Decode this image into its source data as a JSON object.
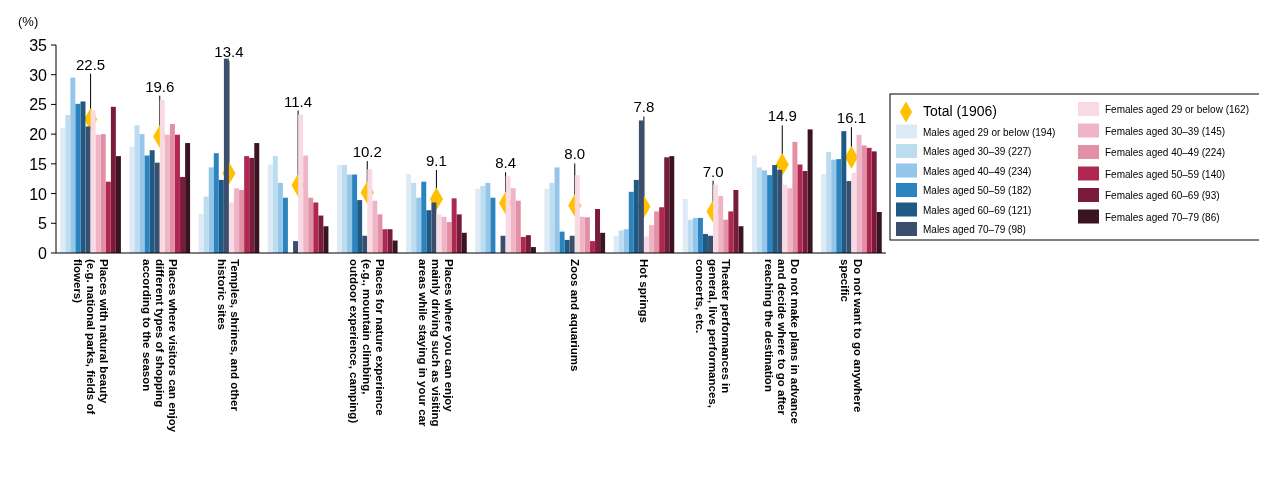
{
  "chart_data": {
    "type": "bar",
    "ylabel": "(%)",
    "ylim": [
      0,
      35
    ],
    "yticks": [
      0,
      5,
      10,
      15,
      20,
      25,
      30,
      35
    ],
    "legend": "right",
    "grid": false,
    "categories": [
      "Places with natural beauty (e.g. national parks, fields of flowers)",
      "Places where visitors can enjoy different types of shopping according to the season",
      "Temples, shrines, and other historic sites",
      null,
      "Places for nature experience (e.g., mountain climbing, outdoor experience, camping)",
      "Places where you can enjoy mainly driving such as visiting areas while staying in your car",
      null,
      "Zoos and aquariums",
      "Hot springs",
      "Theater performances in general, live performances, concerts, etc.",
      "Do not make plans in advance and decide where to go after reaching the destination",
      "Do not want to go anywhere specific"
    ],
    "series": [
      {
        "name": "Total (1906)",
        "type": "scatter",
        "marker": "diamond",
        "color": "#ffc000",
        "values": [
          22.5,
          19.6,
          13.4,
          11.4,
          10.2,
          9.1,
          8.4,
          8.0,
          7.8,
          7.0,
          14.9,
          16.1
        ],
        "value_labels": [
          "22.5",
          "19.6",
          "13.4",
          "11.4",
          "10.2",
          "9.1",
          "8.4",
          "8.0",
          "7.8",
          "7.0",
          "14.9",
          "16.1"
        ]
      },
      {
        "name": "Males aged 29 or below (194)",
        "color": "#deebf7",
        "values": [
          21.0,
          17.9,
          6.6,
          14.9,
          14.8,
          13.3,
          10.8,
          10.8,
          2.9,
          9.1,
          16.4,
          13.3
        ]
      },
      {
        "name": "Males aged 30–39 (227)",
        "color": "#bcdcf0",
        "values": [
          23.2,
          21.5,
          9.5,
          16.3,
          14.8,
          11.8,
          11.3,
          11.8,
          3.8,
          5.6,
          14.4,
          17.0
        ]
      },
      {
        "name": "Males aged 40–49 (234)",
        "color": "#93c6e8",
        "values": [
          29.5,
          20.0,
          14.4,
          11.8,
          13.2,
          9.3,
          11.8,
          14.4,
          4.0,
          5.9,
          13.9,
          15.7
        ]
      },
      {
        "name": "Males aged 50–59 (182)",
        "color": "#2b83bf",
        "values": [
          25.1,
          16.4,
          16.8,
          9.3,
          13.2,
          12.0,
          9.3,
          3.6,
          10.3,
          5.9,
          13.1,
          15.8
        ]
      },
      {
        "name": "Males aged 60–69 (121)",
        "color": "#1f5a85",
        "values": [
          25.5,
          17.3,
          12.3,
          0,
          8.9,
          7.2,
          0,
          2.2,
          12.3,
          3.2,
          14.8,
          20.5
        ]
      },
      {
        "name": "Males aged 70–79 (98)",
        "color": "#3a4e6e",
        "values": [
          21.3,
          15.2,
          32.7,
          2.0,
          2.9,
          8.5,
          2.9,
          2.9,
          22.3,
          2.9,
          14.0,
          12.1
        ]
      },
      {
        "name": "Females aged 29 or below (162)",
        "color": "#f9d9e3",
        "values": [
          24.0,
          25.8,
          8.5,
          23.3,
          14.1,
          6.5,
          12.9,
          13.1,
          2.8,
          11.5,
          11.5,
          13.5
        ]
      },
      {
        "name": "Females aged 30–39 (145)",
        "color": "#efb5c6",
        "values": [
          19.9,
          19.9,
          10.9,
          16.4,
          8.8,
          6.1,
          10.9,
          6.1,
          4.7,
          9.6,
          10.9,
          19.9
        ]
      },
      {
        "name": "Females aged 40–49 (224)",
        "color": "#e38fa8",
        "values": [
          20.0,
          21.7,
          10.6,
          9.3,
          6.5,
          5.2,
          8.8,
          6.0,
          7.0,
          5.6,
          18.7,
          18.1
        ]
      },
      {
        "name": "Females aged 50–59 (140)",
        "color": "#b0284f",
        "values": [
          12.0,
          19.9,
          16.3,
          8.5,
          4.0,
          9.2,
          2.7,
          2.0,
          7.7,
          7.0,
          14.9,
          17.7
        ]
      },
      {
        "name": "Females aged 60–69 (93)",
        "color": "#7a1a3c",
        "values": [
          24.6,
          12.8,
          16.0,
          6.3,
          4.0,
          6.5,
          3.0,
          7.4,
          16.1,
          10.6,
          13.8,
          17.1
        ]
      },
      {
        "name": "Females aged 70–79 (86)",
        "color": "#3a1420",
        "values": [
          16.3,
          18.5,
          18.5,
          4.5,
          2.1,
          3.4,
          1.0,
          3.4,
          16.3,
          4.5,
          20.8,
          6.9
        ]
      }
    ]
  }
}
